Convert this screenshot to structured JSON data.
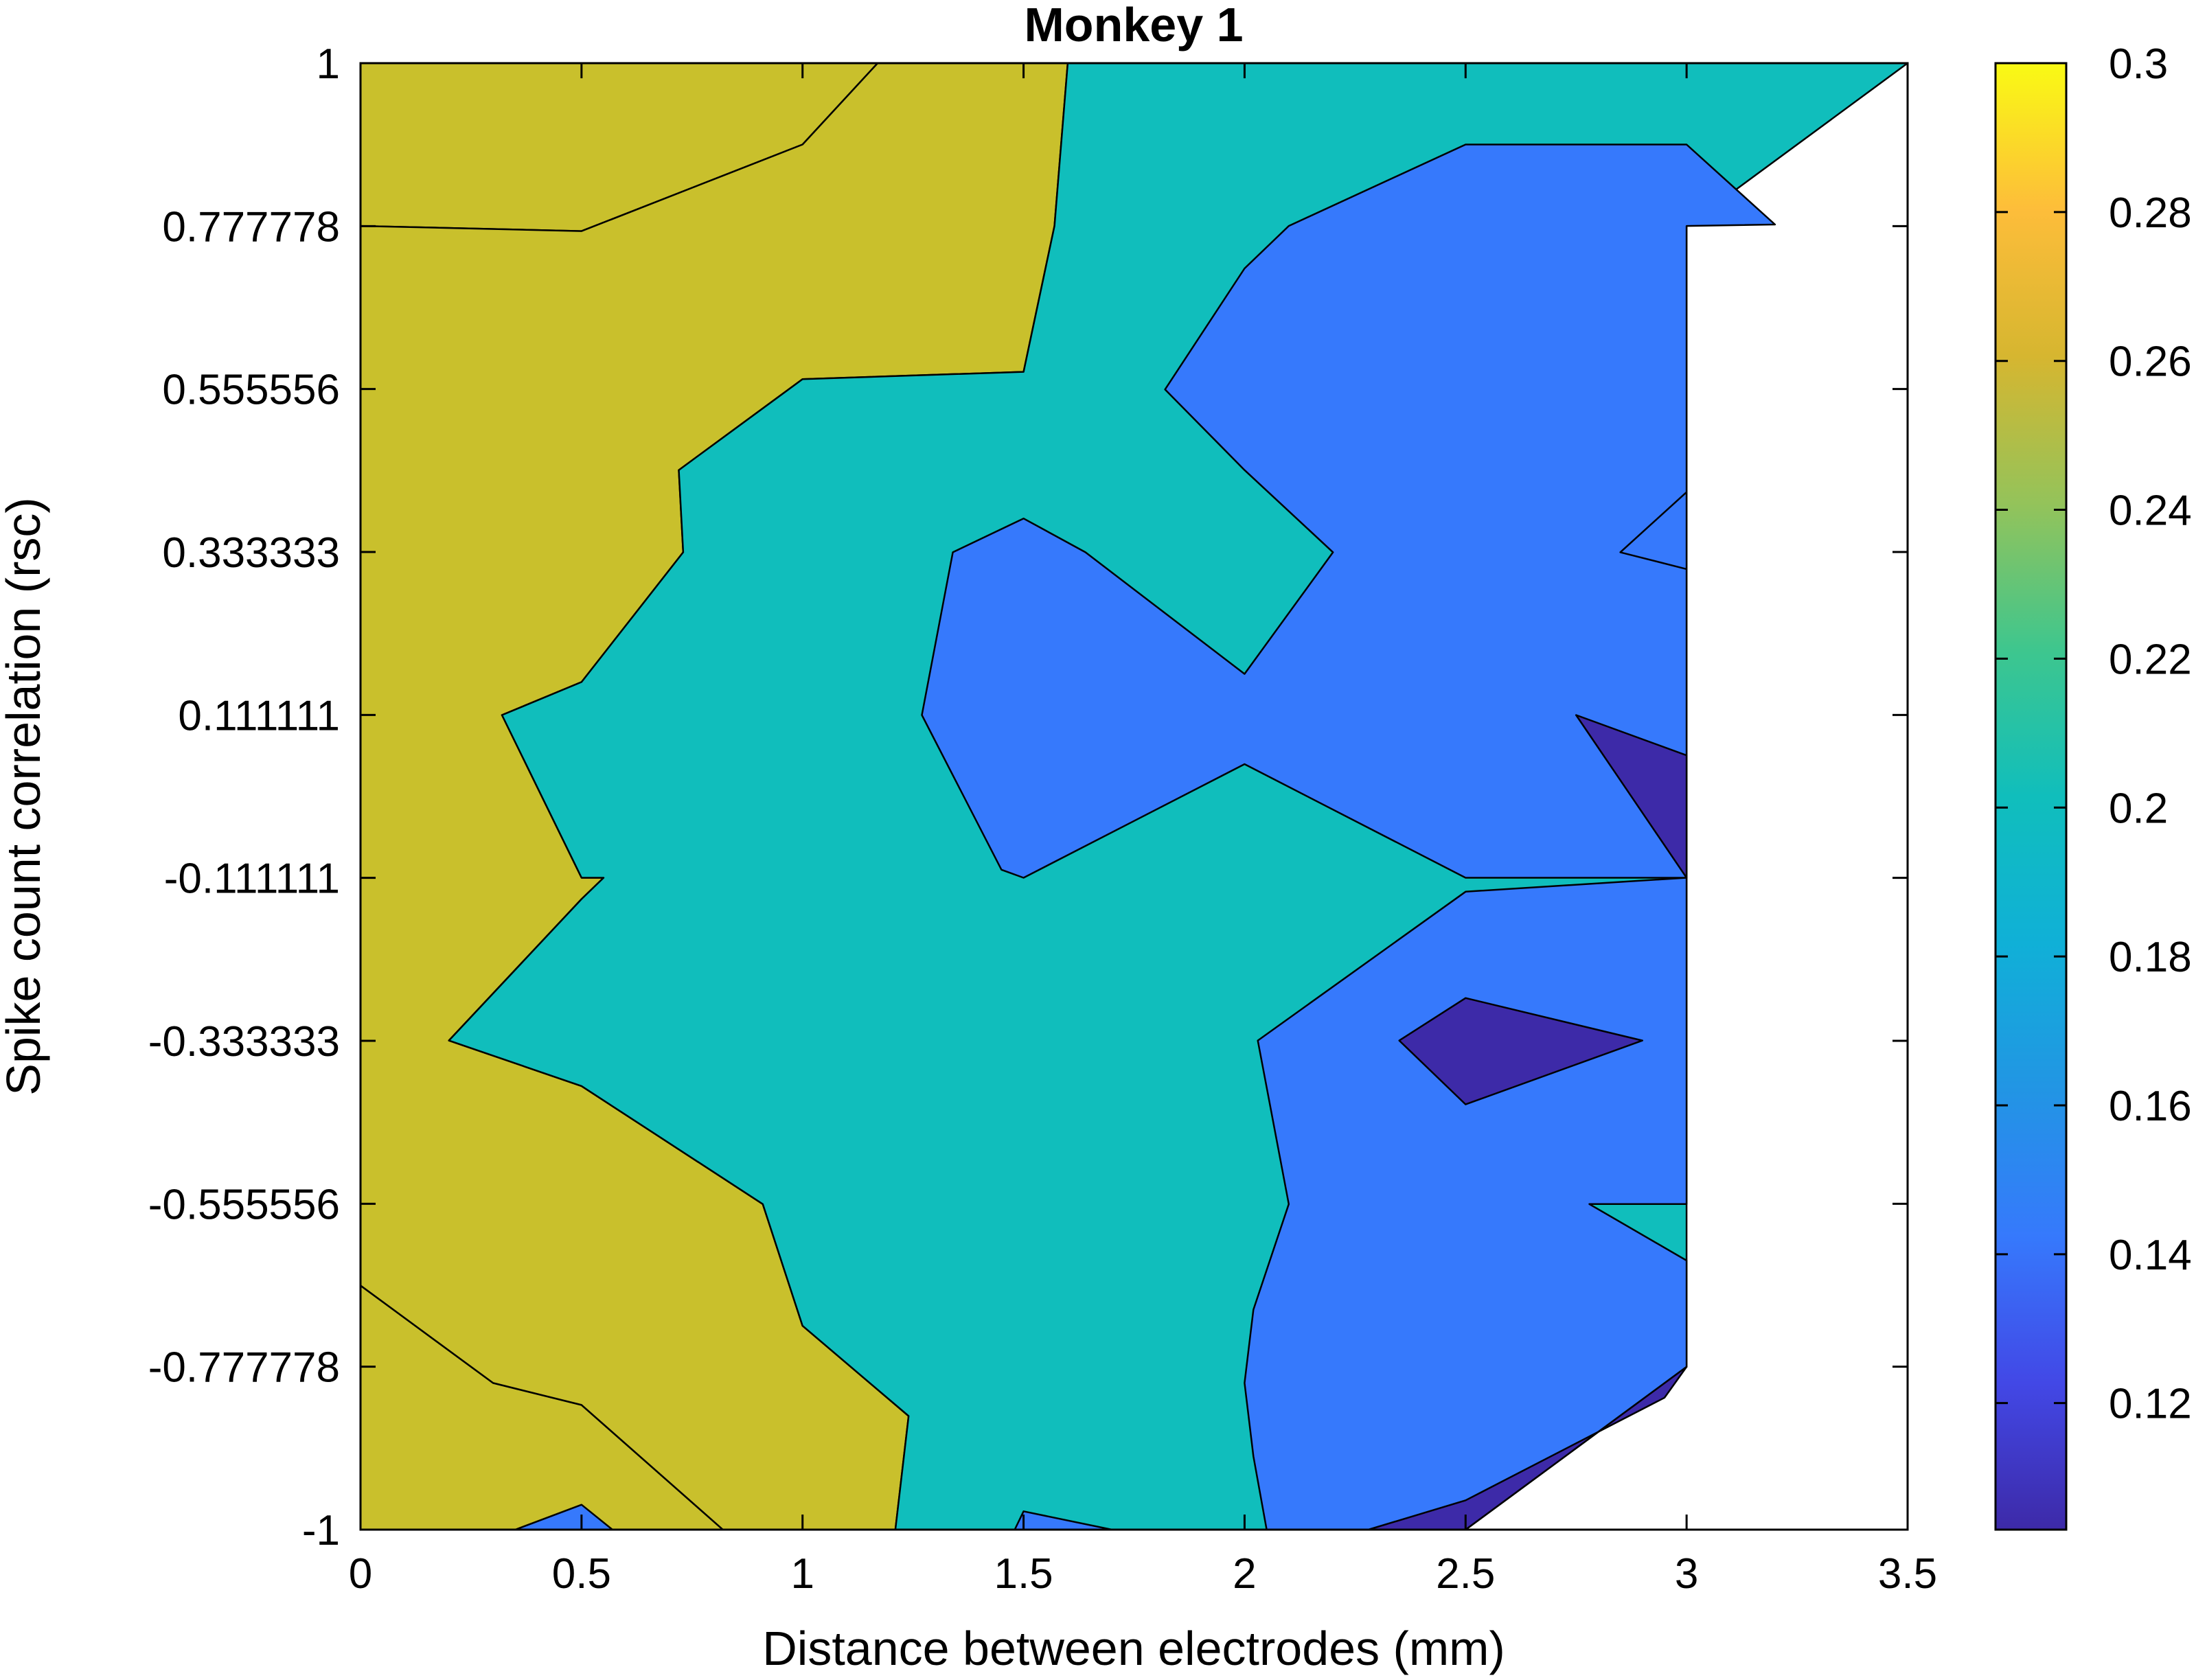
{
  "chart_data": {
    "type": "contourf",
    "title": "Monkey 1",
    "xlabel": "Distance between electrodes (mm)",
    "ylabel": "Spike count correlation (rsc)",
    "xlim": [
      0,
      3.5
    ],
    "ylim": [
      -1,
      1
    ],
    "x_ticks": [
      0,
      0.5,
      1,
      1.5,
      2,
      2.5,
      3,
      3.5
    ],
    "x_tick_labels": [
      "0",
      "0.5",
      "1",
      "1.5",
      "2",
      "2.5",
      "3",
      "3.5"
    ],
    "y_ticks": [
      -1,
      -0.777778,
      -0.555556,
      -0.333333,
      -0.111111,
      0.111111,
      0.333333,
      0.555556,
      0.777778,
      1
    ],
    "y_tick_labels": [
      "-1",
      "-0.777778",
      "-0.555556",
      "-0.333333",
      "-0.111111",
      "0.111111",
      "0.333333",
      "0.555556",
      "0.777778",
      "1"
    ],
    "colorbar": {
      "range": [
        0.103,
        0.3
      ],
      "ticks": [
        0.12,
        0.14,
        0.16,
        0.18,
        0.2,
        0.22,
        0.24,
        0.26,
        0.28,
        0.3
      ],
      "tick_labels": [
        "0.12",
        "0.14",
        "0.16",
        "0.18",
        "0.2",
        "0.22",
        "0.24",
        "0.26",
        "0.28",
        "0.3"
      ],
      "colormap": "parula"
    },
    "levels": [
      {
        "level": 0.103,
        "color": "#3d2aa8"
      },
      {
        "level": 0.153,
        "color": "#3679fc"
      },
      {
        "level": 0.193,
        "color": "#10bebc"
      },
      {
        "level": 0.253,
        "color": "#c9c02c"
      },
      {
        "level": 0.3,
        "color": "#f9fa14"
      }
    ],
    "regions": [
      {
        "level_index": 3,
        "points": [
          [
            0,
            0.778
          ],
          [
            0.5,
            0.771
          ],
          [
            1,
            0.889
          ],
          [
            1.17,
            1
          ],
          [
            0,
            1
          ]
        ]
      },
      {
        "level_index": 3,
        "points": [
          [
            0,
            -0.667
          ],
          [
            0.3,
            -0.8
          ],
          [
            0.5,
            -0.83
          ],
          [
            0.82,
            -1
          ],
          [
            0,
            -1
          ]
        ]
      },
      {
        "level_index": 3,
        "points": [
          [
            1.6,
            1
          ],
          [
            1.57,
            0.778
          ],
          [
            1.5,
            0.579
          ],
          [
            1,
            0.569
          ],
          [
            0.72,
            0.445
          ],
          [
            0.73,
            0.333
          ],
          [
            0.5,
            0.156
          ],
          [
            0.32,
            0.111
          ],
          [
            0.5,
            -0.111
          ],
          [
            0.55,
            -0.111
          ],
          [
            0.5,
            -0.14
          ],
          [
            0.2,
            -0.333
          ],
          [
            0.5,
            -0.395
          ],
          [
            0.91,
            -0.556
          ],
          [
            1,
            -0.722
          ],
          [
            1.24,
            -0.845
          ],
          [
            1.21,
            -1
          ],
          [
            0.82,
            -1
          ],
          [
            0.5,
            -0.83
          ],
          [
            0.3,
            -0.8
          ],
          [
            0,
            -0.667
          ],
          [
            0,
            0.778
          ],
          [
            0.5,
            0.771
          ],
          [
            1,
            0.889
          ],
          [
            1.17,
            1
          ]
        ]
      },
      {
        "level_index": 2,
        "points": [
          [
            1.6,
            1
          ],
          [
            3.3,
            1
          ],
          [
            3.5,
            1
          ],
          [
            3,
            0.778
          ],
          [
            3,
            -0.778
          ],
          [
            2.5,
            -1
          ],
          [
            1.6,
            -1
          ],
          [
            1.5,
            -1
          ],
          [
            0.82,
            -1
          ],
          [
            1.21,
            -1
          ],
          [
            1.24,
            -0.845
          ],
          [
            1,
            -0.722
          ],
          [
            0.91,
            -0.556
          ],
          [
            0.5,
            -0.395
          ],
          [
            0.2,
            -0.333
          ],
          [
            0.5,
            -0.14
          ],
          [
            0.55,
            -0.111
          ],
          [
            0.5,
            -0.111
          ],
          [
            0.32,
            0.111
          ],
          [
            0.5,
            0.156
          ],
          [
            0.73,
            0.333
          ],
          [
            0.72,
            0.445
          ],
          [
            1,
            0.569
          ],
          [
            1.5,
            0.579
          ],
          [
            1.57,
            0.778
          ]
        ]
      },
      {
        "level_index": 1,
        "points": [
          [
            2.5,
            0.889
          ],
          [
            3,
            0.889
          ],
          [
            3.2,
            0.78
          ],
          [
            3,
            0.778
          ],
          [
            3,
            0.31
          ],
          [
            2.85,
            0.333
          ],
          [
            3,
            0.415
          ],
          [
            3,
            -0.111
          ],
          [
            2.5,
            -0.111
          ],
          [
            2,
            0.044
          ],
          [
            1.5,
            -0.111
          ],
          [
            1.45,
            -0.1
          ],
          [
            1.27,
            0.111
          ],
          [
            1.34,
            0.333
          ],
          [
            1.5,
            0.379
          ],
          [
            1.64,
            0.333
          ],
          [
            2,
            0.167
          ],
          [
            2.2,
            0.333
          ],
          [
            2,
            0.445
          ],
          [
            1.82,
            0.555
          ],
          [
            2,
            0.72
          ],
          [
            2.1,
            0.778
          ]
        ]
      },
      {
        "level_index": 1,
        "points": [
          [
            2.5,
            -0.13
          ],
          [
            3,
            -0.111
          ],
          [
            3,
            -0.556
          ],
          [
            2.78,
            -0.556
          ],
          [
            3,
            -0.633
          ],
          [
            3,
            -0.778
          ],
          [
            2.5,
            -1
          ],
          [
            2.05,
            -1
          ],
          [
            2.02,
            -0.9
          ],
          [
            2,
            -0.8
          ],
          [
            2.02,
            -0.7
          ],
          [
            2.1,
            -0.556
          ],
          [
            2.03,
            -0.333
          ],
          [
            2.5,
            -0.13
          ]
        ]
      },
      {
        "level_index": 1,
        "points": [
          [
            0.35,
            -1
          ],
          [
            0.5,
            -0.966
          ],
          [
            0.57,
            -1
          ]
        ]
      },
      {
        "level_index": 1,
        "points": [
          [
            1.48,
            -1
          ],
          [
            1.5,
            -0.975
          ],
          [
            1.7,
            -1
          ]
        ]
      },
      {
        "level_index": 0,
        "points": [
          [
            2.75,
            0.111
          ],
          [
            3,
            0.056
          ],
          [
            3,
            -0.111
          ],
          [
            2.75,
            0.111
          ]
        ]
      },
      {
        "level_index": 0,
        "points": [
          [
            2.35,
            -0.333
          ],
          [
            2.5,
            -0.275
          ],
          [
            2.9,
            -0.333
          ],
          [
            2.5,
            -0.42
          ]
        ]
      },
      {
        "level_index": 0,
        "points": [
          [
            2.28,
            -1
          ],
          [
            2.5,
            -0.96
          ],
          [
            2.95,
            -0.82
          ],
          [
            3,
            -0.778
          ],
          [
            2.5,
            -1
          ]
        ]
      }
    ]
  }
}
